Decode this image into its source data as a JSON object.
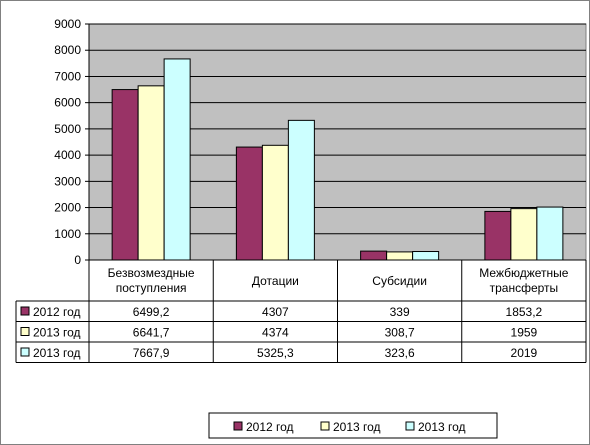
{
  "chart_data": {
    "type": "bar",
    "ylim": [
      0,
      9000
    ],
    "yticks": [
      0,
      1000,
      2000,
      3000,
      4000,
      5000,
      6000,
      7000,
      8000,
      9000
    ],
    "grid": true,
    "legend_position": "bottom-right",
    "categories": [
      [
        "Безвозмездные",
        "поступления"
      ],
      [
        "Дотации"
      ],
      [
        "Субсидии"
      ],
      [
        "Межбюджетные",
        "трансферты"
      ]
    ],
    "series": [
      {
        "name": "2012 год",
        "color": "#993366",
        "values": [
          6499.2,
          4307,
          339,
          1853.2
        ],
        "labels": [
          "6499,2",
          "4307",
          "339",
          "1853,2"
        ]
      },
      {
        "name": "2013 год",
        "color": "#FFFFCC",
        "values": [
          6641.7,
          4374,
          308.7,
          1959
        ],
        "labels": [
          "6641,7",
          "4374",
          "308,7",
          "1959"
        ]
      },
      {
        "name": "2013 год",
        "color": "#CCFFFF",
        "values": [
          7667.9,
          5325.3,
          323.6,
          2019
        ],
        "labels": [
          "7667,9",
          "5325,3",
          "323,6",
          "2019"
        ]
      }
    ]
  }
}
